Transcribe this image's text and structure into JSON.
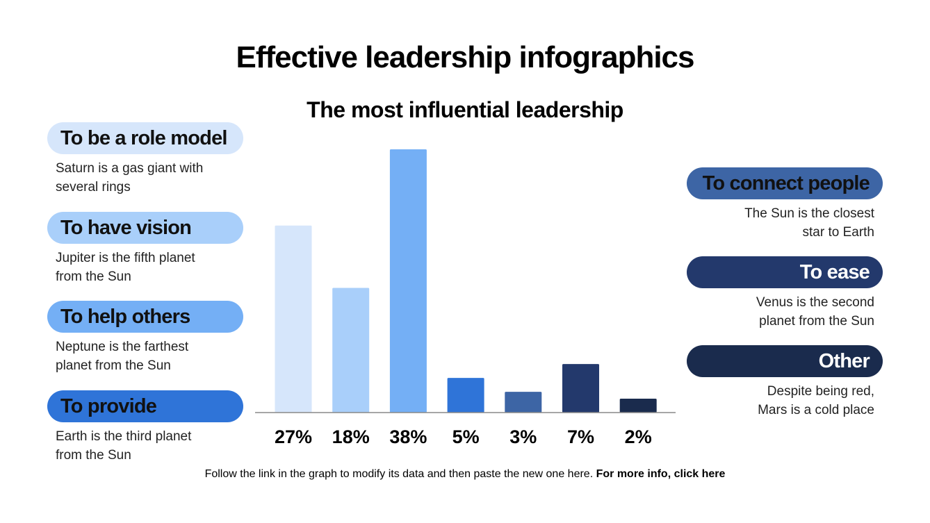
{
  "chart_data": {
    "type": "bar",
    "title": "Effective leadership infographics",
    "subtitle": "The most influential leadership",
    "categories": [
      "To be a role model",
      "To have vision",
      "To help others",
      "To provide",
      "To connect people",
      "To ease",
      "Other"
    ],
    "descriptions": [
      [
        "Saturn is a gas giant with",
        "several rings"
      ],
      [
        "Jupiter is the fifth planet",
        "from the Sun"
      ],
      [
        "Neptune is the farthest",
        "planet from the Sun"
      ],
      [
        "Earth is the third planet",
        "from the Sun"
      ],
      [
        "The Sun is the closest",
        "star to Earth"
      ],
      [
        "Venus is the second",
        "planet from the Sun"
      ],
      [
        "Despite being red,",
        "Mars is a cold place"
      ]
    ],
    "values": [
      27,
      18,
      38,
      5,
      3,
      7,
      2
    ],
    "value_labels": [
      "27%",
      "18%",
      "38%",
      "5%",
      "3%",
      "7%",
      "2%"
    ],
    "colors": [
      "#d6e6fb",
      "#a9cffa",
      "#74aff5",
      "#2f74d8",
      "#3d65a5",
      "#23396c",
      "#1a2b4d"
    ],
    "ylim": [
      0,
      38
    ]
  },
  "footer": {
    "text": "Follow the link in the graph to modify its data and then paste the new one here.",
    "link": "For more info, click here"
  }
}
